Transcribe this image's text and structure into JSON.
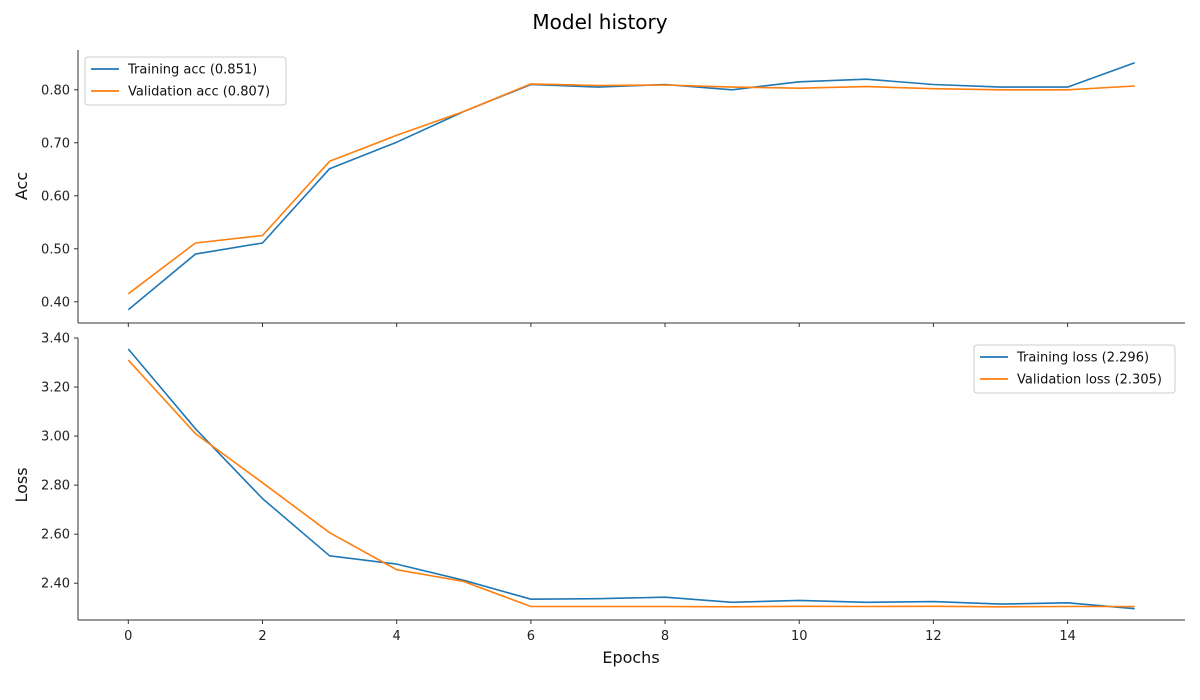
{
  "figure": {
    "title": "Model history",
    "xlabel": "Epochs"
  },
  "colors": {
    "series1": "#1f77b4",
    "series2": "#ff7f0e"
  },
  "chart_data": [
    {
      "type": "line",
      "ylabel": "Acc",
      "xlabel": "Epochs",
      "xlim": [
        -0.75,
        15.75
      ],
      "ylim": [
        0.36,
        0.875
      ],
      "yticks": [
        0.4,
        0.5,
        0.6,
        0.7,
        0.8
      ],
      "ytick_labels": [
        "0.40",
        "0.50",
        "0.60",
        "0.70",
        "0.80"
      ],
      "legend_position": "top-left",
      "grid": false,
      "x": [
        0,
        1,
        2,
        3,
        4,
        5,
        6,
        7,
        8,
        9,
        10,
        11,
        12,
        13,
        14,
        15
      ],
      "series": [
        {
          "name": "Training acc (0.851)",
          "color": "#1f77b4",
          "values": [
            0.385,
            0.49,
            0.511,
            0.651,
            0.701,
            0.759,
            0.81,
            0.805,
            0.81,
            0.8,
            0.815,
            0.82,
            0.81,
            0.805,
            0.805,
            0.851
          ]
        },
        {
          "name": "Validation acc (0.807)",
          "color": "#ff7f0e",
          "values": [
            0.415,
            0.511,
            0.525,
            0.665,
            0.714,
            0.759,
            0.811,
            0.808,
            0.809,
            0.805,
            0.803,
            0.806,
            0.802,
            0.8,
            0.8,
            0.807
          ]
        }
      ]
    },
    {
      "type": "line",
      "ylabel": "Loss",
      "xlabel": "Epochs",
      "xlim": [
        -0.75,
        15.75
      ],
      "ylim": [
        2.25,
        3.4
      ],
      "yticks": [
        2.4,
        2.6,
        2.8,
        3.0,
        3.2,
        3.4
      ],
      "ytick_labels": [
        "2.40",
        "2.60",
        "2.80",
        "3.00",
        "3.20",
        "3.40"
      ],
      "xticks": [
        0,
        2,
        4,
        6,
        8,
        10,
        12,
        14
      ],
      "xtick_labels": [
        "0",
        "2",
        "4",
        "6",
        "8",
        "10",
        "12",
        "14"
      ],
      "legend_position": "top-right",
      "grid": false,
      "x": [
        0,
        1,
        2,
        3,
        4,
        5,
        6,
        7,
        8,
        9,
        10,
        11,
        12,
        13,
        14,
        15
      ],
      "series": [
        {
          "name": "Training loss (2.296)",
          "color": "#1f77b4",
          "values": [
            3.355,
            3.03,
            2.745,
            2.512,
            2.478,
            2.412,
            2.335,
            2.337,
            2.343,
            2.322,
            2.33,
            2.322,
            2.325,
            2.315,
            2.32,
            2.296
          ]
        },
        {
          "name": "Validation loss (2.305)",
          "color": "#ff7f0e",
          "values": [
            3.31,
            3.01,
            2.81,
            2.606,
            2.455,
            2.407,
            2.305,
            2.305,
            2.305,
            2.304,
            2.306,
            2.305,
            2.306,
            2.304,
            2.305,
            2.305
          ]
        }
      ]
    }
  ]
}
